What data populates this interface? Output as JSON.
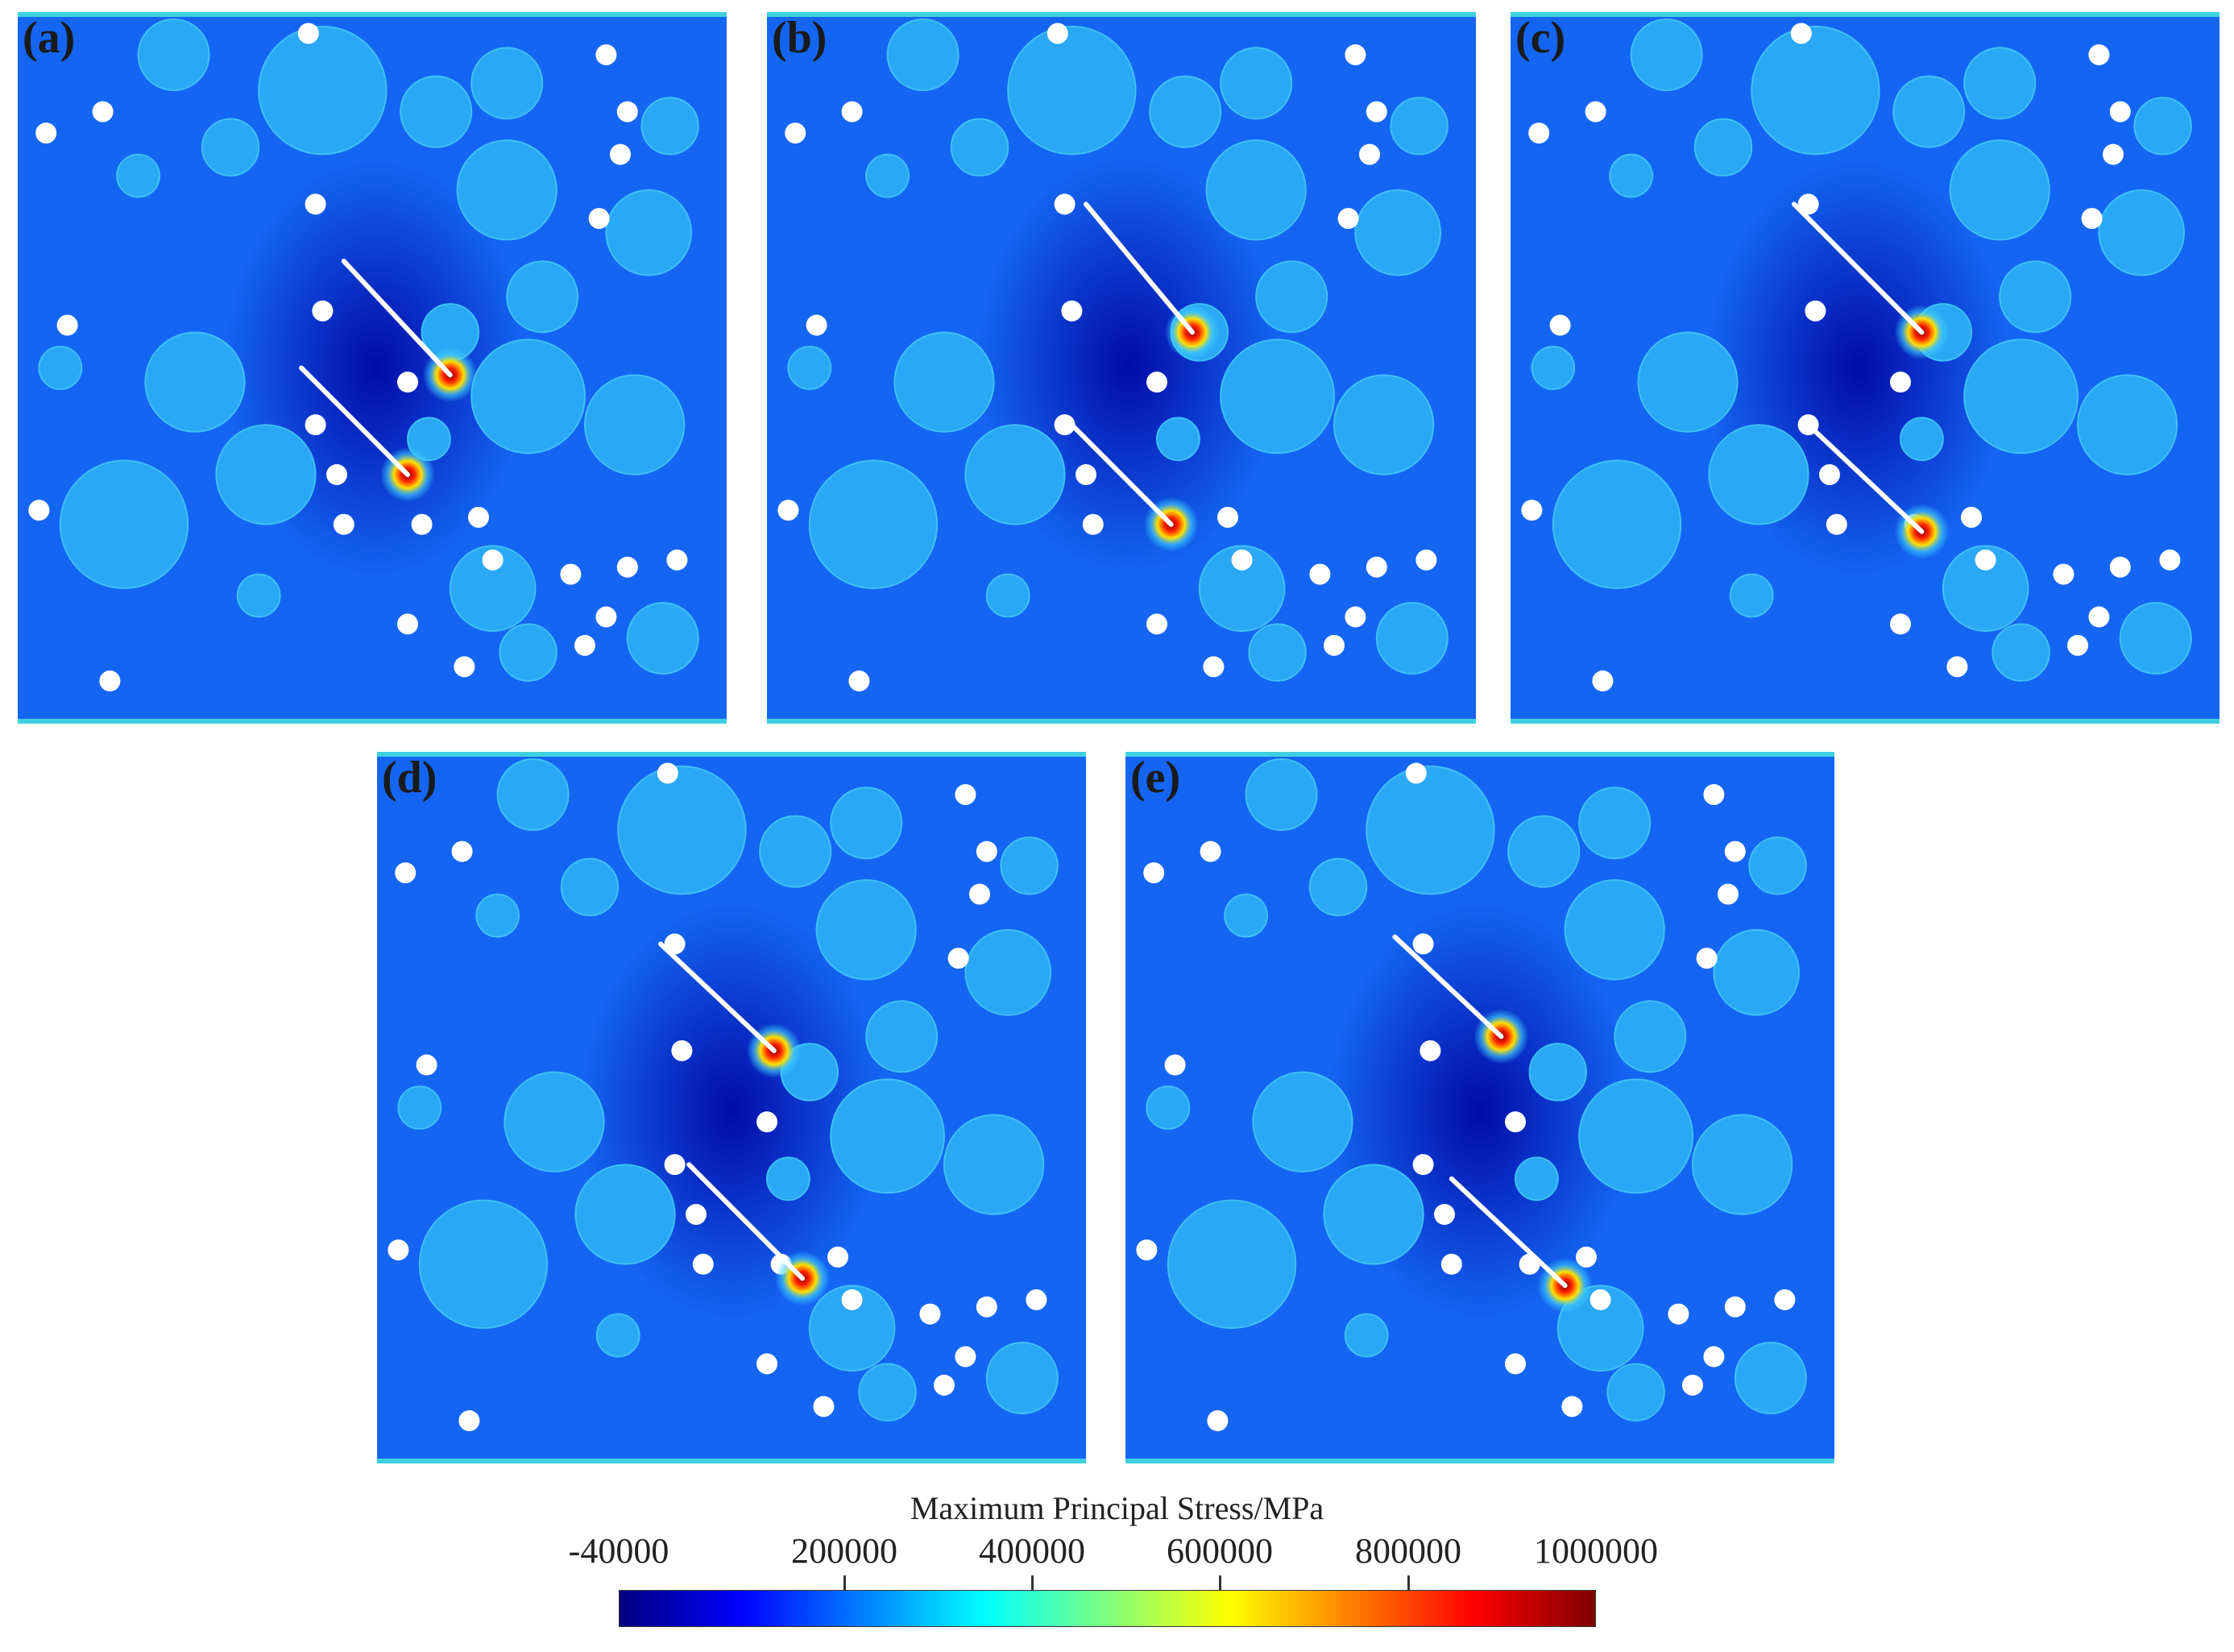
{
  "panels": [
    {
      "label": "(a)",
      "cracks": [
        [
          0.46,
          0.35,
          0.61,
          0.51
        ],
        [
          0.4,
          0.5,
          0.55,
          0.65
        ]
      ],
      "tips": [
        [
          0.61,
          0.51
        ],
        [
          0.55,
          0.65
        ]
      ]
    },
    {
      "label": "(b)",
      "cracks": [
        [
          0.45,
          0.27,
          0.6,
          0.45
        ],
        [
          0.42,
          0.57,
          0.57,
          0.72
        ]
      ],
      "tips": [
        [
          0.6,
          0.45
        ],
        [
          0.57,
          0.72
        ]
      ]
    },
    {
      "label": "(c)",
      "cracks": [
        [
          0.4,
          0.27,
          0.58,
          0.45
        ],
        [
          0.42,
          0.58,
          0.58,
          0.73
        ]
      ],
      "tips": [
        [
          0.58,
          0.45
        ],
        [
          0.58,
          0.73
        ]
      ]
    },
    {
      "label": "(d)",
      "cracks": [
        [
          0.4,
          0.27,
          0.56,
          0.42
        ],
        [
          0.44,
          0.58,
          0.6,
          0.74
        ]
      ],
      "tips": [
        [
          0.56,
          0.42
        ],
        [
          0.6,
          0.74
        ]
      ]
    },
    {
      "label": "(e)",
      "cracks": [
        [
          0.38,
          0.26,
          0.53,
          0.4
        ],
        [
          0.46,
          0.6,
          0.62,
          0.75
        ]
      ],
      "tips": [
        [
          0.53,
          0.4
        ],
        [
          0.62,
          0.75
        ]
      ]
    }
  ],
  "aggregates": [
    [
      0.22,
      0.06,
      0.05
    ],
    [
      0.43,
      0.11,
      0.09
    ],
    [
      0.69,
      0.1,
      0.05
    ],
    [
      0.92,
      0.16,
      0.04
    ],
    [
      0.3,
      0.19,
      0.04
    ],
    [
      0.17,
      0.23,
      0.03
    ],
    [
      0.69,
      0.25,
      0.07
    ],
    [
      0.89,
      0.31,
      0.06
    ],
    [
      0.59,
      0.14,
      0.05
    ],
    [
      0.74,
      0.4,
      0.05
    ],
    [
      0.61,
      0.45,
      0.04
    ],
    [
      0.25,
      0.52,
      0.07
    ],
    [
      0.06,
      0.5,
      0.03
    ],
    [
      0.72,
      0.54,
      0.08
    ],
    [
      0.87,
      0.58,
      0.07
    ],
    [
      0.35,
      0.65,
      0.07
    ],
    [
      0.15,
      0.72,
      0.09
    ],
    [
      0.67,
      0.81,
      0.06
    ],
    [
      0.34,
      0.82,
      0.03
    ],
    [
      0.91,
      0.88,
      0.05
    ],
    [
      0.72,
      0.9,
      0.04
    ],
    [
      0.58,
      0.6,
      0.03
    ]
  ],
  "voids": [
    [
      0.41,
      0.03
    ],
    [
      0.12,
      0.14
    ],
    [
      0.04,
      0.17
    ],
    [
      0.83,
      0.06
    ],
    [
      0.86,
      0.14
    ],
    [
      0.85,
      0.2
    ],
    [
      0.42,
      0.27
    ],
    [
      0.82,
      0.29
    ],
    [
      0.43,
      0.42
    ],
    [
      0.07,
      0.44
    ],
    [
      0.55,
      0.52
    ],
    [
      0.42,
      0.58
    ],
    [
      0.45,
      0.65
    ],
    [
      0.46,
      0.72
    ],
    [
      0.57,
      0.72
    ],
    [
      0.65,
      0.71
    ],
    [
      0.03,
      0.7
    ],
    [
      0.78,
      0.79
    ],
    [
      0.83,
      0.85
    ],
    [
      0.86,
      0.78
    ],
    [
      0.93,
      0.77
    ],
    [
      0.8,
      0.89
    ],
    [
      0.55,
      0.86
    ],
    [
      0.63,
      0.92
    ],
    [
      0.13,
      0.94
    ],
    [
      0.67,
      0.77
    ]
  ],
  "colorbar": {
    "title": "Maximum Principal Stress/MPa",
    "ticks": [
      "-40000",
      "200000",
      "400000",
      "600000",
      "800000",
      "1000000"
    ],
    "tick_values": [
      -40000,
      200000,
      400000,
      600000,
      800000,
      1000000
    ],
    "range": [
      -40000,
      1000000
    ],
    "colors": [
      "#00007f",
      "#0000ff",
      "#007fff",
      "#00ffff",
      "#7fff7f",
      "#ffff00",
      "#ff7f00",
      "#ff0000",
      "#7f0000"
    ]
  }
}
